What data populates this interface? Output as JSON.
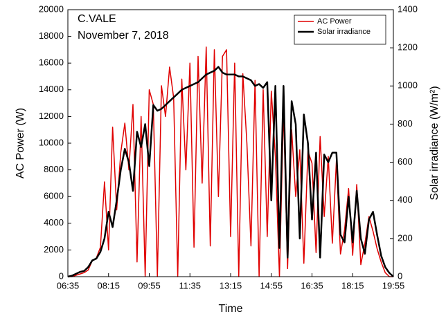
{
  "chart_data": {
    "type": "line",
    "title": "C.VALE",
    "subtitle": "November 7, 2018",
    "xlabel": "Time",
    "ylabel": "AC Power (W)",
    "y2label": "Solar irradiance (W/m²)",
    "x": [
      395,
      405,
      415,
      425,
      435,
      445,
      455,
      465,
      475,
      485,
      495,
      505,
      515,
      525,
      535,
      545,
      555,
      565,
      575,
      585,
      595,
      605,
      615,
      625,
      635,
      645,
      655,
      665,
      675,
      685,
      695,
      705,
      715,
      725,
      735,
      745,
      755,
      765,
      775,
      785,
      795,
      805,
      815,
      825,
      835,
      845,
      855,
      865,
      875,
      885,
      895,
      905,
      915,
      925,
      935,
      945,
      955,
      965,
      975,
      985,
      995,
      1005,
      1015,
      1025,
      1035,
      1045,
      1055,
      1065,
      1075,
      1085,
      1095,
      1105,
      1115,
      1125,
      1135,
      1145,
      1155,
      1165,
      1175,
      1185,
      1195
    ],
    "series": [
      {
        "name": "AC Power",
        "color": "#e00000",
        "width": 1.5,
        "values": [
          0,
          0,
          100,
          200,
          300,
          500,
          1200,
          1400,
          2200,
          7100,
          2000,
          11200,
          5000,
          9300,
          11500,
          8000,
          12900,
          1100,
          12000,
          0,
          14000,
          12900,
          0,
          14300,
          12000,
          15700,
          13400,
          0,
          14800,
          8000,
          16000,
          2200,
          16500,
          7000,
          17200,
          2300,
          17000,
          6000,
          16500,
          17000,
          3000,
          16000,
          0,
          15200,
          10000,
          2300,
          14700,
          0,
          14000,
          3000,
          13900,
          9000,
          0,
          12500,
          600,
          11000,
          6000,
          9500,
          1000,
          9400,
          8500,
          1800,
          10500,
          4500,
          9000,
          2500,
          8700,
          1700,
          3500,
          6600,
          1600,
          6900,
          900,
          2500,
          4500,
          3400,
          2100,
          1100,
          300,
          0,
          0
        ]
      },
      {
        "name": "Solar irradiance",
        "color": "#000000",
        "width": 2.5,
        "axis": "y2",
        "values": [
          0,
          5,
          15,
          25,
          30,
          50,
          85,
          95,
          130,
          200,
          340,
          260,
          400,
          560,
          670,
          600,
          450,
          760,
          680,
          800,
          580,
          900,
          870,
          880,
          900,
          920,
          940,
          960,
          980,
          990,
          1000,
          1010,
          1020,
          1040,
          1060,
          1070,
          1080,
          1100,
          1070,
          1060,
          1060,
          1060,
          1050,
          1050,
          1040,
          1030,
          1000,
          1010,
          990,
          1020,
          400,
          1000,
          150,
          1000,
          100,
          920,
          800,
          200,
          850,
          700,
          300,
          650,
          100,
          640,
          600,
          650,
          650,
          220,
          180,
          420,
          180,
          450,
          200,
          120,
          300,
          340,
          220,
          110,
          50,
          20,
          0
        ]
      }
    ],
    "xlim": [
      395,
      1195
    ],
    "xticks": [
      {
        "value": 395,
        "label": "06:35"
      },
      {
        "value": 495,
        "label": "08:15"
      },
      {
        "value": 595,
        "label": "09:55"
      },
      {
        "value": 695,
        "label": "11:35"
      },
      {
        "value": 795,
        "label": "13:15"
      },
      {
        "value": 895,
        "label": "14:55"
      },
      {
        "value": 995,
        "label": "16:35"
      },
      {
        "value": 1095,
        "label": "18:15"
      },
      {
        "value": 1195,
        "label": "19:55"
      }
    ],
    "ylim": [
      0,
      20000
    ],
    "yticks": [
      0,
      2000,
      4000,
      6000,
      8000,
      10000,
      12000,
      14000,
      16000,
      18000,
      20000
    ],
    "y2lim": [
      0,
      1400
    ],
    "y2ticks": [
      0,
      200,
      400,
      600,
      800,
      1000,
      1200,
      1400
    ],
    "legend": "top-right"
  }
}
